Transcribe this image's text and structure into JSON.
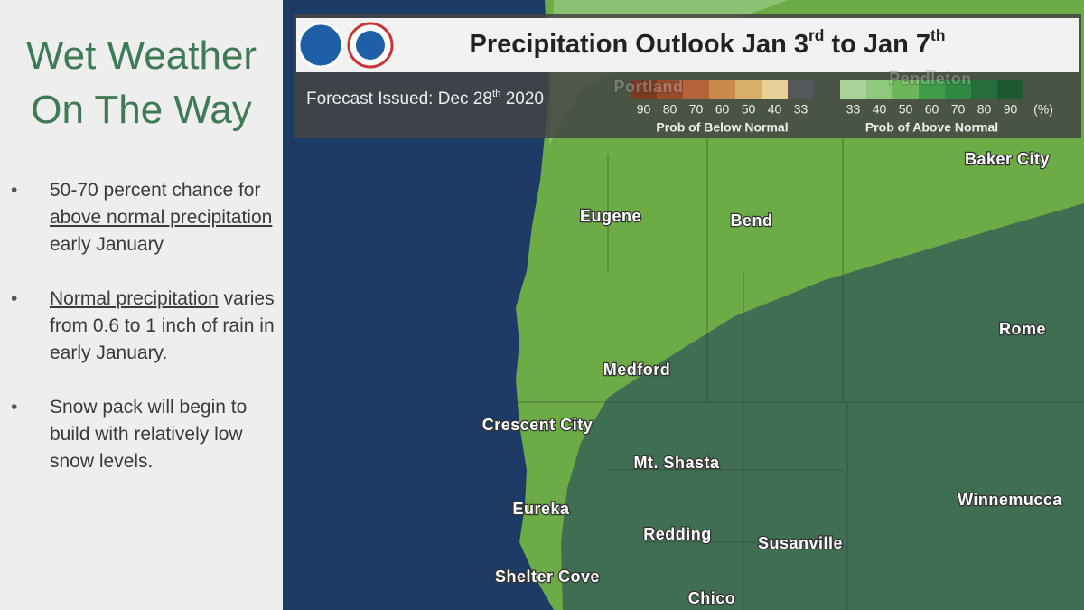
{
  "sidebar": {
    "title_lines": [
      "Wet Weather",
      "On The Way"
    ],
    "bullets": [
      [
        {
          "text": "50-70 percent chance for "
        },
        {
          "text": "above normal precipitation",
          "underline": true
        },
        {
          "text": " early January"
        }
      ],
      [
        {
          "text": "Normal precipitation",
          "underline": true
        },
        {
          "text": " varies from 0.6 to 1 inch of rain in early January."
        }
      ],
      [
        {
          "text": "Snow pack will begin to build with relatively low snow levels."
        }
      ]
    ]
  },
  "map": {
    "title_parts": [
      {
        "text": "Precipitation Outlook Jan 3"
      },
      {
        "text": "rd",
        "sup": true
      },
      {
        "text": " to Jan 7"
      },
      {
        "text": "th",
        "sup": true
      }
    ],
    "issued_parts": [
      {
        "text": "Forecast Issued: Dec 28"
      },
      {
        "text": "th",
        "sup": true
      },
      {
        "text": " 2020"
      }
    ],
    "legend": {
      "below": {
        "labels": [
          90,
          80,
          70,
          60,
          50,
          40,
          33
        ],
        "colors": [
          "#7a3a22",
          "#9b4a2a",
          "#b5643a",
          "#c98a4c",
          "#d9ae6a",
          "#e8d098",
          "#55585a"
        ],
        "caption": "Prob of Below Normal"
      },
      "above": {
        "labels": [
          33,
          40,
          50,
          60,
          70,
          80,
          90
        ],
        "colors": [
          "#a9d39a",
          "#8fc97e",
          "#6db65a",
          "#3f9b48",
          "#2e8a45",
          "#256e3b",
          "#1e5a31"
        ],
        "caption": "Prob of Above Normal"
      },
      "unit": "(%)"
    },
    "cities": [
      {
        "name": "Portland",
        "faint": true
      },
      {
        "name": "Pendleton",
        "faint": true
      },
      {
        "name": "Baker City"
      },
      {
        "name": "Eugene"
      },
      {
        "name": "Bend"
      },
      {
        "name": "Rome"
      },
      {
        "name": "Medford"
      },
      {
        "name": "Crescent City"
      },
      {
        "name": "Mt. Shasta"
      },
      {
        "name": "Winnemucca"
      },
      {
        "name": "Eureka"
      },
      {
        "name": "Redding"
      },
      {
        "name": "Susanville"
      },
      {
        "name": "Shelter Cove"
      },
      {
        "name": "Chico"
      }
    ]
  }
}
